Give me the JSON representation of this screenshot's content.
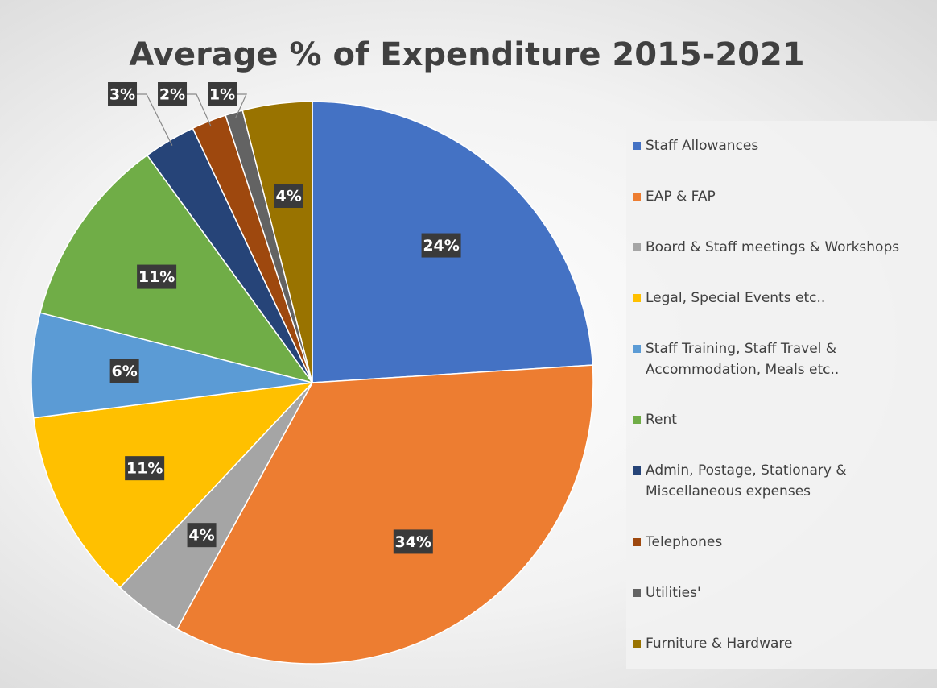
{
  "chart_data": {
    "type": "pie",
    "title": "Average % of Expenditure 2015-2021",
    "categories": [
      "Staff Allowances",
      "EAP & FAP",
      "Board & Staff meetings & Workshops",
      "Legal, Special Events etc..",
      "Staff Training, Staff Travel & Accommodation, Meals etc..",
      "Rent",
      "Admin, Postage, Stationary & Miscellaneous expenses",
      "Telephones",
      "Utilities'",
      "Furniture & Hardware"
    ],
    "values": [
      24,
      34,
      4,
      11,
      6,
      11,
      3,
      2,
      1,
      4
    ],
    "value_labels": [
      "24%",
      "34%",
      "4%",
      "11%",
      "6%",
      "11%",
      "3%",
      "2%",
      "1%",
      "4%"
    ],
    "colors": [
      "#4472c4",
      "#ed7d31",
      "#a5a5a5",
      "#ffc000",
      "#5b9bd5",
      "#70ad47",
      "#264478",
      "#9e480e",
      "#636363",
      "#997300"
    ],
    "legend": "right"
  }
}
